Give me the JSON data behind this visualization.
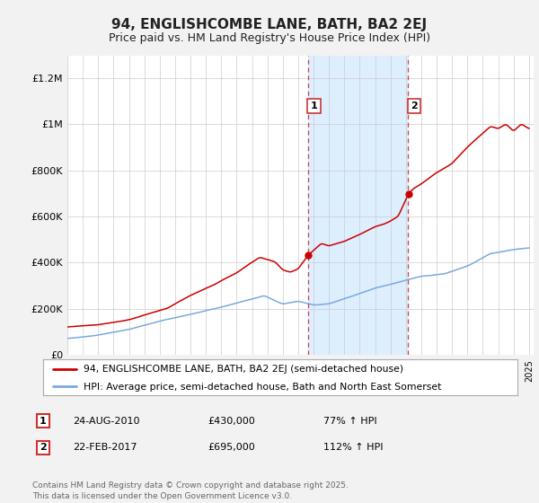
{
  "title": "94, ENGLISHCOMBE LANE, BATH, BA2 2EJ",
  "subtitle": "Price paid vs. HM Land Registry's House Price Index (HPI)",
  "title_color": "#222222",
  "background_color": "#f2f2f2",
  "plot_bg_color": "#ffffff",
  "shaded_region_color": "#ddeeff",
  "red_line_color": "#cc0000",
  "blue_line_color": "#7aaadd",
  "ylim": [
    0,
    1300000
  ],
  "yticks": [
    0,
    200000,
    400000,
    600000,
    800000,
    1000000,
    1200000
  ],
  "ytick_labels": [
    "£0",
    "£200K",
    "£400K",
    "£600K",
    "£800K",
    "£1M",
    "£1.2M"
  ],
  "sale1_date": "24-AUG-2010",
  "sale1_price": 430000,
  "sale1_pct": "77%",
  "sale2_date": "22-FEB-2017",
  "sale2_price": 695000,
  "sale2_pct": "112%",
  "sale1_year": 2010.65,
  "sale2_year": 2017.15,
  "legend_label1": "94, ENGLISHCOMBE LANE, BATH, BA2 2EJ (semi-detached house)",
  "legend_label2": "HPI: Average price, semi-detached house, Bath and North East Somerset",
  "footer": "Contains HM Land Registry data © Crown copyright and database right 2025.\nThis data is licensed under the Open Government Licence v3.0."
}
